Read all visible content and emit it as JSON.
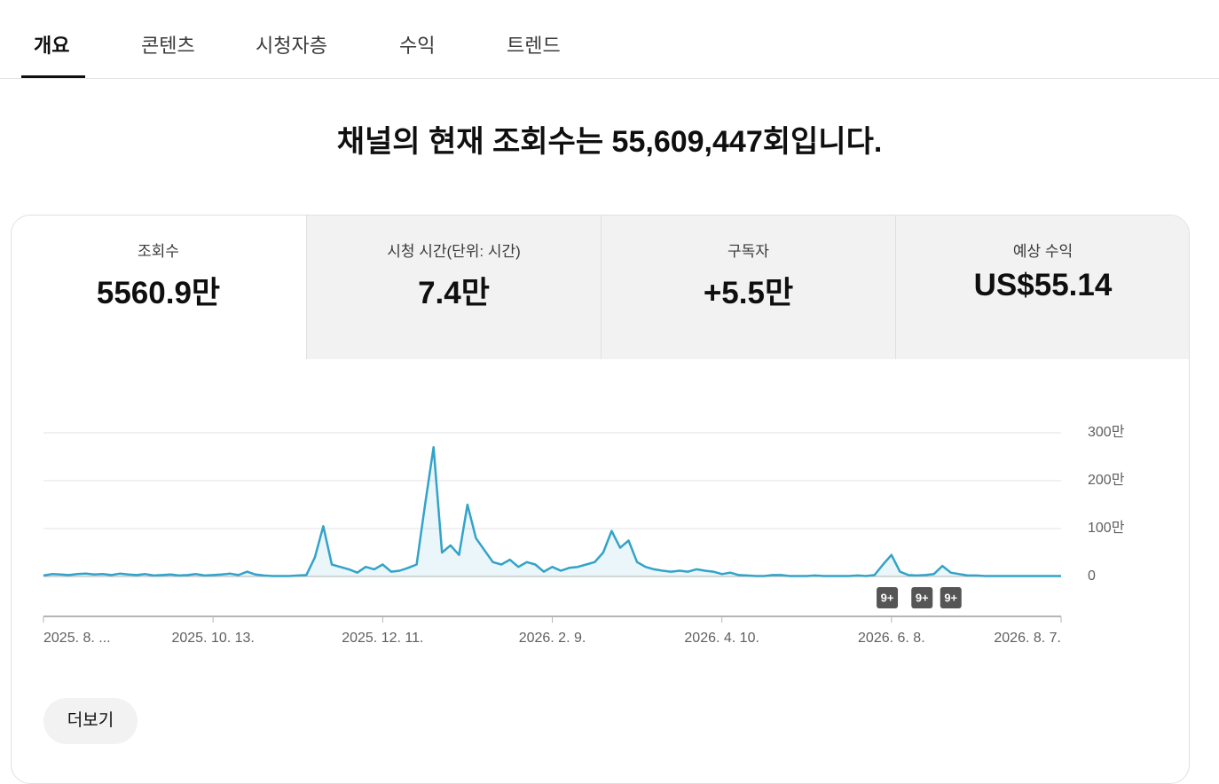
{
  "tabs": [
    "개요",
    "콘텐츠",
    "시청자층",
    "수익",
    "트렌드"
  ],
  "headline": "채널의 현재 조회수는 55,609,447회입니다.",
  "metrics": [
    {
      "label": "조회수",
      "value": "5560.9만"
    },
    {
      "label": "시청 시간(단위: 시간)",
      "value": "7.4만"
    },
    {
      "label": "구독자",
      "value": "+5.5만"
    },
    {
      "label": "예상 수익",
      "value": "US$55.14"
    }
  ],
  "chart_data": {
    "type": "area",
    "series": [
      {
        "color": "#32a3c9",
        "values": [
          2,
          5,
          4,
          3,
          5,
          6,
          4,
          5,
          3,
          6,
          4,
          3,
          5,
          2,
          3,
          4,
          2,
          3,
          5,
          2,
          3,
          4,
          6,
          3,
          10,
          4,
          2,
          1,
          1,
          1,
          2,
          3,
          40,
          105,
          25,
          20,
          15,
          8,
          20,
          15,
          25,
          10,
          12,
          18,
          25,
          150,
          270,
          50,
          65,
          45,
          150,
          80,
          55,
          30,
          25,
          35,
          20,
          30,
          25,
          10,
          20,
          12,
          18,
          20,
          25,
          30,
          50,
          95,
          60,
          75,
          30,
          20,
          15,
          12,
          10,
          12,
          10,
          15,
          12,
          10,
          5,
          8,
          3,
          2,
          1,
          1,
          3,
          3,
          1,
          1,
          1,
          2,
          1,
          1,
          1,
          1,
          2,
          1,
          3,
          25,
          45,
          10,
          3,
          2,
          3,
          5,
          22,
          8,
          5,
          2,
          2,
          1,
          1,
          1,
          1,
          1,
          1,
          1,
          1,
          1,
          1
        ]
      }
    ],
    "xlim": [
      0,
      120
    ],
    "xticks": [
      {
        "value": 0,
        "label": "2025. 8. ..."
      },
      {
        "value": 20,
        "label": "2025. 10. 13."
      },
      {
        "value": 40,
        "label": "2025. 12. 11."
      },
      {
        "value": 60,
        "label": "2026. 2. 9."
      },
      {
        "value": 80,
        "label": "2026. 4. 10."
      },
      {
        "value": 100,
        "label": "2026. 6. 8."
      },
      {
        "value": 120,
        "label": "2026. 8. 7."
      }
    ],
    "ylim": [
      0,
      300
    ],
    "yticks": [
      0,
      {
        "value": 100,
        "label": "100만"
      },
      {
        "value": 200,
        "label": "200만"
      },
      {
        "value": 300,
        "label": "300만"
      }
    ],
    "grid": true,
    "annotations": [
      {
        "x": 99.5,
        "label": "9+"
      },
      {
        "x": 103.6,
        "label": "9+"
      },
      {
        "x": 107,
        "label": "9+"
      }
    ]
  },
  "button": "더보기"
}
